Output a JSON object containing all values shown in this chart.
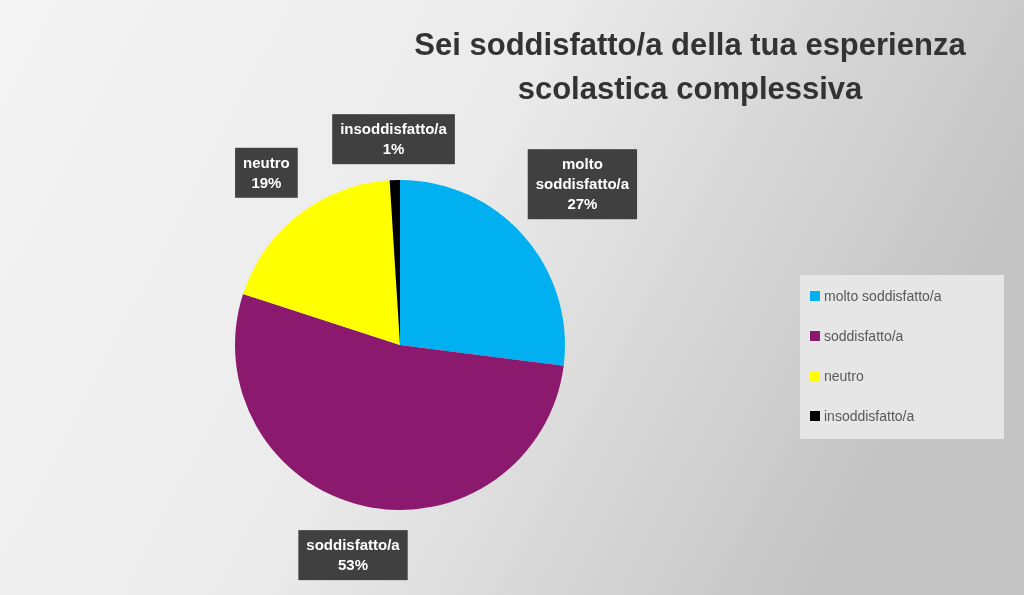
{
  "chart_data": {
    "type": "pie",
    "title": "Sei soddisfatto/a della tua esperienza scolastica complessiva",
    "categories": [
      "molto soddisfatto/a",
      "soddisfatto/a",
      "neutro",
      "insoddisfatto/a"
    ],
    "values": [
      27,
      53,
      19,
      1
    ],
    "colors": [
      "#00b0f0",
      "#8b1a6e",
      "#ffff00",
      "#000000"
    ],
    "value_labels": [
      "27%",
      "53%",
      "19%",
      "1%"
    ],
    "legend": "right"
  }
}
